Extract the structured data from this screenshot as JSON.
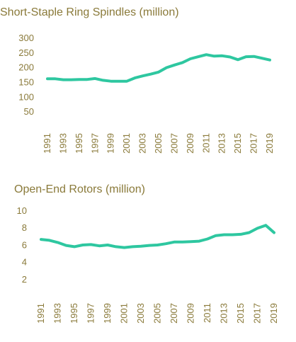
{
  "chart_data": [
    {
      "type": "line",
      "title": "Short-Staple Ring Spindles (million)",
      "x": [
        1991,
        1992,
        1993,
        1994,
        1995,
        1996,
        1997,
        1998,
        1999,
        2000,
        2001,
        2002,
        2003,
        2004,
        2005,
        2006,
        2007,
        2008,
        2009,
        2010,
        2011,
        2012,
        2013,
        2014,
        2015,
        2016,
        2017,
        2018,
        2019
      ],
      "xticks": [
        "1991",
        "1993",
        "1995",
        "1997",
        "1999",
        "2001",
        "2003",
        "2005",
        "2007",
        "2009",
        "2011",
        "2013",
        "2015",
        "2017",
        "2019"
      ],
      "yticks": [
        "300",
        "250",
        "200",
        "150",
        "100",
        "50"
      ],
      "values": [
        160,
        160,
        157,
        157,
        158,
        158,
        161,
        155,
        152,
        152,
        152,
        163,
        170,
        176,
        183,
        198,
        207,
        215,
        228,
        235,
        242,
        237,
        238,
        234,
        225,
        235,
        236,
        230,
        224
      ],
      "ylim": [
        0,
        300
      ],
      "xlim": [
        1991,
        2019
      ],
      "grid": false,
      "line_color": "#2ec7a0"
    },
    {
      "type": "line",
      "title": "Open-End Rotors (million)",
      "x": [
        1991,
        1992,
        1993,
        1994,
        1995,
        1996,
        1997,
        1998,
        1999,
        2000,
        2001,
        2002,
        2003,
        2004,
        2005,
        2006,
        2007,
        2008,
        2009,
        2010,
        2011,
        2012,
        2013,
        2014,
        2015,
        2016,
        2017,
        2018,
        2019
      ],
      "xticks": [
        "1991",
        "1993",
        "1995",
        "1997",
        "1999",
        "2001",
        "2003",
        "2005",
        "2007",
        "2009",
        "2011",
        "2013",
        "2015",
        "2017",
        "2019"
      ],
      "yticks": [
        "10",
        "8",
        "6",
        "4",
        "2"
      ],
      "values": [
        6.6,
        6.5,
        6.25,
        5.9,
        5.75,
        5.95,
        6.0,
        5.85,
        5.95,
        5.75,
        5.65,
        5.75,
        5.8,
        5.9,
        5.95,
        6.1,
        6.3,
        6.3,
        6.35,
        6.4,
        6.65,
        7.05,
        7.15,
        7.15,
        7.2,
        7.4,
        7.9,
        8.25,
        7.4
      ],
      "ylim": [
        0,
        10
      ],
      "xlim": [
        1991,
        2019
      ],
      "grid": false,
      "line_color": "#2ec7a0"
    }
  ]
}
